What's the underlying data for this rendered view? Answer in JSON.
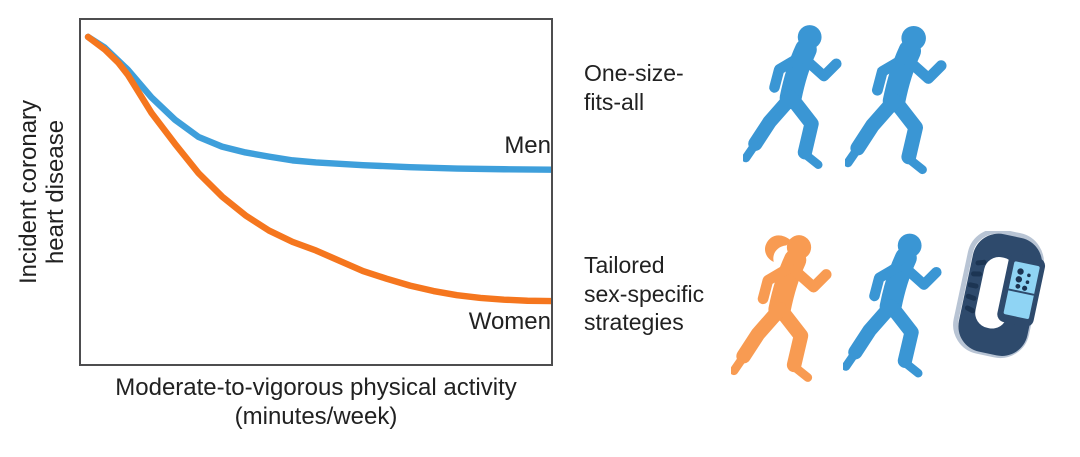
{
  "figure": {
    "background": "#ffffff",
    "colors": {
      "text": "#212121",
      "plot_border": "#4d4d4f",
      "men_blue": "#3e9fdb",
      "women_orange": "#f5761e",
      "runner_blue": "#3a96d4",
      "runner_orange": "#f89b52",
      "watch_navy": "#2e4a6c",
      "watch_slot": "#1c3553",
      "watch_screen": "#8fd4f4",
      "watch_rim": "#b8c4d4"
    },
    "chart": {
      "y_axis_label_line1": "Incident coronary",
      "y_axis_label_line2": "heart disease",
      "x_axis_label_line1": "Moderate-to-vigorous physical activity",
      "x_axis_label_line2": "(minutes/week)"
    },
    "right_panel": {
      "row1": {
        "label_lines": [
          "One-size-",
          "fits-all"
        ],
        "icons": [
          "male-runner-icon",
          "male-runner-icon"
        ]
      },
      "row2": {
        "label_lines": [
          "Tailored",
          "sex-specific",
          "strategies"
        ],
        "icons": [
          "female-runner-icon",
          "male-runner-icon",
          "fitness-tracker-icon"
        ]
      }
    }
  },
  "chart_data": {
    "type": "line",
    "title": "",
    "xlabel": "Moderate-to-vigorous physical activity (minutes/week)",
    "ylabel": "Incident coronary heart disease",
    "x_axis_ticks": [],
    "y_axis_ticks": [],
    "grid": false,
    "axes_note": "Conceptual schematic: no numeric ticks; x and y normalized 0-1",
    "xlim_norm": [
      0,
      1
    ],
    "ylim_norm": [
      0,
      1
    ],
    "legend": "inline labels at right end of curves",
    "series": [
      {
        "name": "Men",
        "color": "#3e9fdb",
        "x": [
          0.015,
          0.05,
          0.1,
          0.15,
          0.2,
          0.25,
          0.3,
          0.35,
          0.4,
          0.45,
          0.5,
          0.6,
          0.7,
          0.8,
          0.9,
          1.0
        ],
        "y": [
          0.951,
          0.92,
          0.855,
          0.775,
          0.71,
          0.66,
          0.632,
          0.615,
          0.603,
          0.592,
          0.586,
          0.578,
          0.572,
          0.568,
          0.566,
          0.565
        ]
      },
      {
        "name": "Women",
        "color": "#f5761e",
        "x": [
          0.015,
          0.05,
          0.08,
          0.1,
          0.15,
          0.2,
          0.25,
          0.3,
          0.35,
          0.4,
          0.45,
          0.5,
          0.55,
          0.6,
          0.65,
          0.7,
          0.75,
          0.8,
          0.85,
          0.9,
          0.95,
          1.0
        ],
        "y": [
          0.951,
          0.915,
          0.875,
          0.84,
          0.73,
          0.64,
          0.555,
          0.487,
          0.432,
          0.388,
          0.355,
          0.33,
          0.3,
          0.27,
          0.248,
          0.228,
          0.212,
          0.2,
          0.192,
          0.187,
          0.184,
          0.183
        ]
      }
    ]
  }
}
